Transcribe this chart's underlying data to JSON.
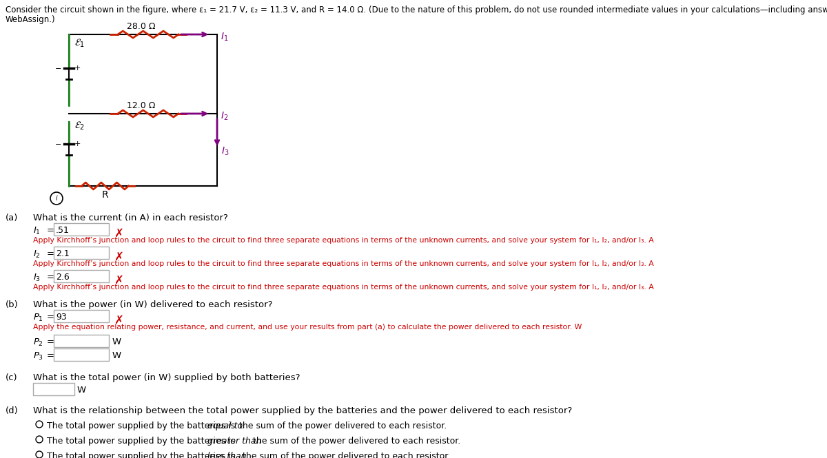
{
  "title_line1": "Consider the circuit shown in the figure, where ε₁ = 21.7 V, ε₂ = 11.3 V, and R = 14.0 Ω. (Due to the nature of this problem, do not use rounded intermediate values in your calculations—including answers submitted in",
  "title_line2": "WebAssign.)",
  "I1_val": ".51",
  "I2_val": "2.1",
  "I3_val": "2.6",
  "kirchhoff_hint": "Apply Kirchhoff’s junction and loop rules to the circuit to find three separate equations in terms of the unknown currents, and solve your system for I₁, I₂, and/or I₃. A",
  "P1_val": "93",
  "power_hint": "Apply the equation relating power, resistance, and current, and use your results from part (a) to calculate the power delivered to each resistor. W",
  "red_color": "#cc0000",
  "purple_color": "#800080",
  "green_color": "#228B22",
  "background_color": "#ffffff",
  "circuit_res_color": "#cc2200",
  "fig_width": 12.0,
  "fig_height": 6.65
}
